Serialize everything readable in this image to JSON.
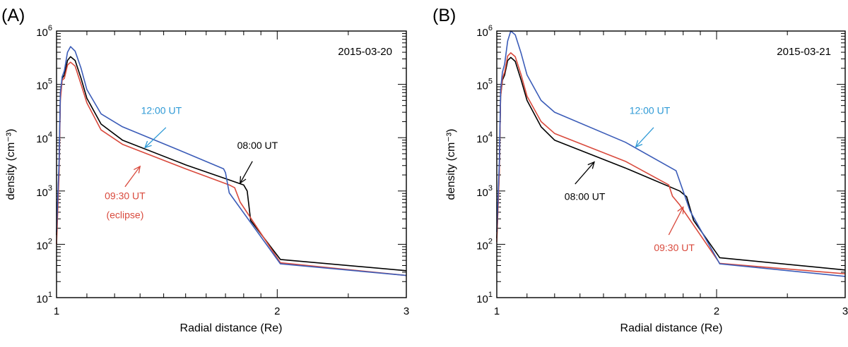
{
  "panels": [
    {
      "label": "(A)",
      "chart_data": {
        "type": "line",
        "title": "2015-03-20",
        "xlabel": "Radial distance (Re)",
        "ylabel": "density (cm⁻³)",
        "x_scale": "log",
        "y_scale": "log",
        "xlim": [
          1,
          3
        ],
        "ylim": [
          10,
          1000000
        ],
        "xticks": [
          {
            "value": 1,
            "label": "1"
          },
          {
            "value": 2,
            "label": "2"
          },
          {
            "value": 3,
            "label": "3"
          }
        ],
        "yticks": [
          {
            "value": 10,
            "base": "10",
            "exp": "1"
          },
          {
            "value": 100,
            "base": "10",
            "exp": "2"
          },
          {
            "value": 1000,
            "base": "10",
            "exp": "3"
          },
          {
            "value": 10000,
            "base": "10",
            "exp": "4"
          },
          {
            "value": 100000,
            "base": "10",
            "exp": "5"
          },
          {
            "value": 1000000,
            "base": "10",
            "exp": "6"
          }
        ],
        "series": [
          {
            "name": "08:00 UT",
            "color": "#000000",
            "x": [
              1.0,
              1.008,
              1.012,
              1.018,
              1.025,
              1.035,
              1.045,
              1.06,
              1.08,
              1.1,
              1.15,
              1.23,
              1.5,
              1.8,
              1.82,
              1.84,
              2.02,
              3.0
            ],
            "y": [
              150,
              3000,
              60000,
              130000,
              150000,
              280000,
              330000,
              280000,
              130000,
              55000,
              18000,
              9000,
              3100,
              1300,
              1000,
              280,
              52,
              32
            ]
          },
          {
            "name": "09:30 UT",
            "color": "#d94a3d",
            "x": [
              1.0,
              1.008,
              1.012,
              1.018,
              1.025,
              1.035,
              1.045,
              1.06,
              1.08,
              1.1,
              1.15,
              1.23,
              1.5,
              1.72,
              1.75,
              1.78,
              2.02,
              3.0
            ],
            "y": [
              100,
              2000,
              50000,
              120000,
              130000,
              230000,
              260000,
              220000,
              100000,
              45000,
              14000,
              7500,
              2600,
              1300,
              1150,
              620,
              45,
              26
            ]
          },
          {
            "name": "12:00 UT",
            "color": "#3b5cb8",
            "x": [
              1.0,
              1.008,
              1.012,
              1.018,
              1.025,
              1.035,
              1.045,
              1.06,
              1.08,
              1.1,
              1.15,
              1.23,
              1.5,
              1.69,
              1.7,
              1.72,
              2.02,
              3.0
            ],
            "y": [
              170,
              3500,
              70000,
              140000,
              180000,
              400000,
              510000,
              420000,
              200000,
              80000,
              28000,
              16000,
              5200,
              2600,
              2200,
              920,
              43,
              26
            ]
          }
        ],
        "annotations": [
          {
            "text": "12:00 UT",
            "color": "#2f9ad6",
            "text_x": 1.39,
            "text_y": 28000,
            "arrow_from": [
              1.41,
              15500
            ],
            "arrow_to": [
              1.32,
              6500
            ]
          },
          {
            "text": "08:00 UT",
            "color": "#000000",
            "text_x": 1.88,
            "text_y": 6200,
            "arrow_from": [
              1.85,
              3600
            ],
            "arrow_to": [
              1.78,
              1400
            ]
          },
          {
            "text": "09:30 UT",
            "color": "#d94a3d",
            "text_x": 1.24,
            "text_y": 700,
            "arrow_from": [
              1.24,
              1200
            ],
            "arrow_to": [
              1.3,
              2900
            ]
          },
          {
            "text": "(eclipse)",
            "color": "#d94a3d",
            "text_x": 1.24,
            "text_y": 310
          }
        ]
      }
    },
    {
      "label": "(B)",
      "chart_data": {
        "type": "line",
        "title": "2015-03-21",
        "xlabel": "Radial distance (Re)",
        "ylabel": "density (cm⁻³)",
        "x_scale": "log",
        "y_scale": "log",
        "xlim": [
          1,
          3
        ],
        "ylim": [
          10,
          1000000
        ],
        "xticks": [
          {
            "value": 1,
            "label": "1"
          },
          {
            "value": 2,
            "label": "2"
          },
          {
            "value": 3,
            "label": "3"
          }
        ],
        "yticks": [
          {
            "value": 10,
            "base": "10",
            "exp": "1"
          },
          {
            "value": 100,
            "base": "10",
            "exp": "2"
          },
          {
            "value": 1000,
            "base": "10",
            "exp": "3"
          },
          {
            "value": 10000,
            "base": "10",
            "exp": "4"
          },
          {
            "value": 100000,
            "base": "10",
            "exp": "5"
          },
          {
            "value": 1000000,
            "base": "10",
            "exp": "6"
          }
        ],
        "series": [
          {
            "name": "08:00 UT",
            "color": "#000000",
            "x": [
              1.0,
              1.008,
              1.012,
              1.018,
              1.025,
              1.035,
              1.045,
              1.06,
              1.08,
              1.1,
              1.15,
              1.2,
              1.5,
              1.78,
              1.82,
              1.86,
              2.02,
              3.0
            ],
            "y": [
              130,
              2500,
              60000,
              120000,
              150000,
              280000,
              320000,
              270000,
              120000,
              50000,
              16000,
              9000,
              2700,
              1000,
              780,
              280,
              56,
              33
            ]
          },
          {
            "name": "09:30 UT",
            "color": "#d94a3d",
            "x": [
              1.0,
              1.008,
              1.012,
              1.018,
              1.025,
              1.035,
              1.045,
              1.06,
              1.08,
              1.1,
              1.15,
              1.2,
              1.5,
              1.72,
              1.74,
              1.78,
              2.02,
              3.0
            ],
            "y": [
              110,
              2200,
              60000,
              130000,
              170000,
              340000,
              390000,
              330000,
              150000,
              60000,
              20000,
              12000,
              3600,
              1300,
              800,
              550,
              44,
              28
            ]
          },
          {
            "name": "12:00 UT",
            "color": "#3b5cb8",
            "x": [
              1.0,
              1.008,
              1.012,
              1.018,
              1.025,
              1.035,
              1.045,
              1.06,
              1.08,
              1.1,
              1.15,
              1.2,
              1.5,
              1.76,
              1.84,
              2.02,
              3.0
            ],
            "y": [
              170,
              3500,
              80000,
              170000,
              240000,
              650000,
              1000000,
              850000,
              380000,
              150000,
              50000,
              30000,
              8200,
              2400,
              420,
              43,
              25
            ]
          }
        ],
        "annotations": [
          {
            "text": "12:00 UT",
            "color": "#2f9ad6",
            "text_x": 1.62,
            "text_y": 28000,
            "arrow_from": [
              1.64,
              15500
            ],
            "arrow_to": [
              1.55,
              6700
            ]
          },
          {
            "text": "08:00 UT",
            "color": "#000000",
            "text_x": 1.32,
            "text_y": 680,
            "arrow_from": [
              1.28,
              1350
            ],
            "arrow_to": [
              1.36,
              3500
            ]
          },
          {
            "text": "09:30 UT",
            "color": "#d94a3d",
            "text_x": 1.75,
            "text_y": 75,
            "arrow_from": [
              1.72,
              150
            ],
            "arrow_to": [
              1.8,
              500
            ]
          }
        ]
      }
    }
  ]
}
